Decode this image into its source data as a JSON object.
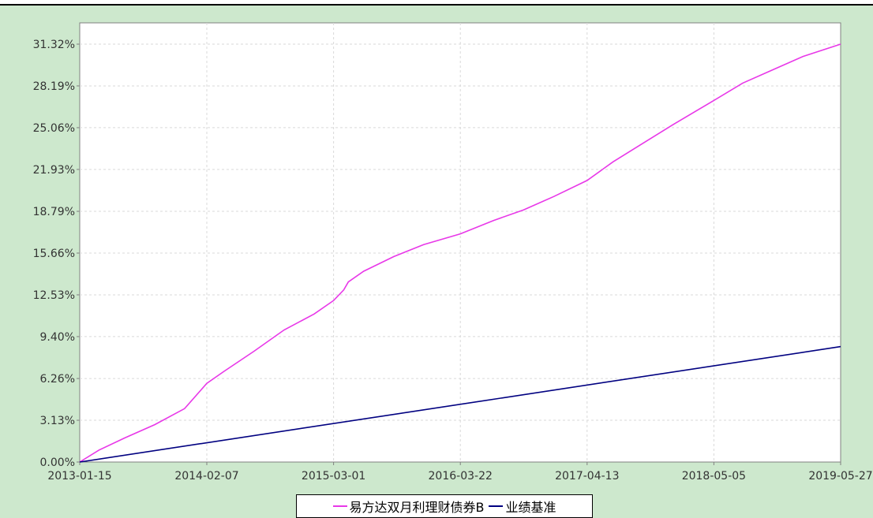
{
  "chart_data": {
    "type": "line",
    "title": "",
    "xlabel": "",
    "ylabel": "",
    "x_ticks": [
      "2013-01-15",
      "2014-02-07",
      "2015-03-01",
      "2016-03-22",
      "2017-04-13",
      "2018-05-05",
      "2019-05-27"
    ],
    "y_ticks": [
      "0.00%",
      "3.13%",
      "6.26%",
      "9.40%",
      "12.53%",
      "15.66%",
      "18.79%",
      "21.93%",
      "25.06%",
      "28.19%",
      "31.32%"
    ],
    "ylim": [
      0,
      31.32
    ],
    "grid": true,
    "legend_position": "bottom-center",
    "series": [
      {
        "name": "易方达双月利理财债券B",
        "color": "#e838e8",
        "x": [
          "2013-01-15",
          "2013-03-15",
          "2013-06-01",
          "2013-09-01",
          "2013-12-01",
          "2014-02-07",
          "2014-04-01",
          "2014-07-01",
          "2014-10-01",
          "2015-01-01",
          "2015-03-01",
          "2015-04-01",
          "2015-04-15",
          "2015-06-01",
          "2015-09-01",
          "2015-12-01",
          "2016-03-22",
          "2016-07-01",
          "2016-10-01",
          "2017-01-01",
          "2017-04-13",
          "2017-07-01",
          "2017-10-01",
          "2018-01-01",
          "2018-05-05",
          "2018-08-01",
          "2018-11-01",
          "2019-02-01",
          "2019-05-27"
        ],
        "values": [
          0.0,
          0.9,
          1.8,
          2.8,
          4.0,
          5.9,
          6.8,
          8.3,
          9.9,
          11.1,
          12.1,
          12.9,
          13.5,
          14.3,
          15.4,
          16.3,
          17.1,
          18.1,
          18.9,
          19.9,
          21.1,
          22.5,
          23.9,
          25.3,
          27.1,
          28.4,
          29.4,
          30.4,
          31.32
        ]
      },
      {
        "name": "业绩基准",
        "color": "#000080",
        "x": [
          "2013-01-15",
          "2019-05-27"
        ],
        "values": [
          0.0,
          8.65
        ]
      }
    ]
  }
}
